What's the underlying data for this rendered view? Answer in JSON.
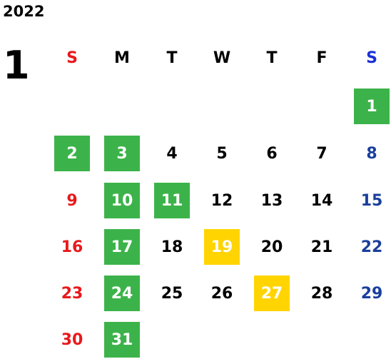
{
  "year": "2022",
  "month": "1",
  "weekdays": [
    {
      "label": "S",
      "color": "#e8191c"
    },
    {
      "label": "M",
      "color": "#000000"
    },
    {
      "label": "T",
      "color": "#000000"
    },
    {
      "label": "W",
      "color": "#000000"
    },
    {
      "label": "T",
      "color": "#000000"
    },
    {
      "label": "F",
      "color": "#000000"
    },
    {
      "label": "S",
      "color": "#1a2fd6"
    }
  ],
  "colors": {
    "sunday": "#e8191c",
    "saturday": "#1a3f9c",
    "weekday": "#000000",
    "green_highlight": "#3cb34a",
    "yellow_highlight": "#ffd400"
  },
  "first_weekday_index": 6,
  "days": [
    {
      "day": "1",
      "highlight": "green"
    },
    {
      "day": "2",
      "highlight": "green"
    },
    {
      "day": "3",
      "highlight": "green"
    },
    {
      "day": "4",
      "highlight": null
    },
    {
      "day": "5",
      "highlight": null
    },
    {
      "day": "6",
      "highlight": null
    },
    {
      "day": "7",
      "highlight": null
    },
    {
      "day": "8",
      "highlight": null
    },
    {
      "day": "9",
      "highlight": null
    },
    {
      "day": "10",
      "highlight": "green"
    },
    {
      "day": "11",
      "highlight": "green"
    },
    {
      "day": "12",
      "highlight": null
    },
    {
      "day": "13",
      "highlight": null
    },
    {
      "day": "14",
      "highlight": null
    },
    {
      "day": "15",
      "highlight": null
    },
    {
      "day": "16",
      "highlight": null
    },
    {
      "day": "17",
      "highlight": "green"
    },
    {
      "day": "18",
      "highlight": null
    },
    {
      "day": "19",
      "highlight": "yellow"
    },
    {
      "day": "20",
      "highlight": null
    },
    {
      "day": "21",
      "highlight": null
    },
    {
      "day": "22",
      "highlight": null
    },
    {
      "day": "23",
      "highlight": null
    },
    {
      "day": "24",
      "highlight": "green"
    },
    {
      "day": "25",
      "highlight": null
    },
    {
      "day": "26",
      "highlight": null
    },
    {
      "day": "27",
      "highlight": "yellow"
    },
    {
      "day": "28",
      "highlight": null
    },
    {
      "day": "29",
      "highlight": null
    },
    {
      "day": "30",
      "highlight": null
    },
    {
      "day": "31",
      "highlight": "green"
    }
  ]
}
